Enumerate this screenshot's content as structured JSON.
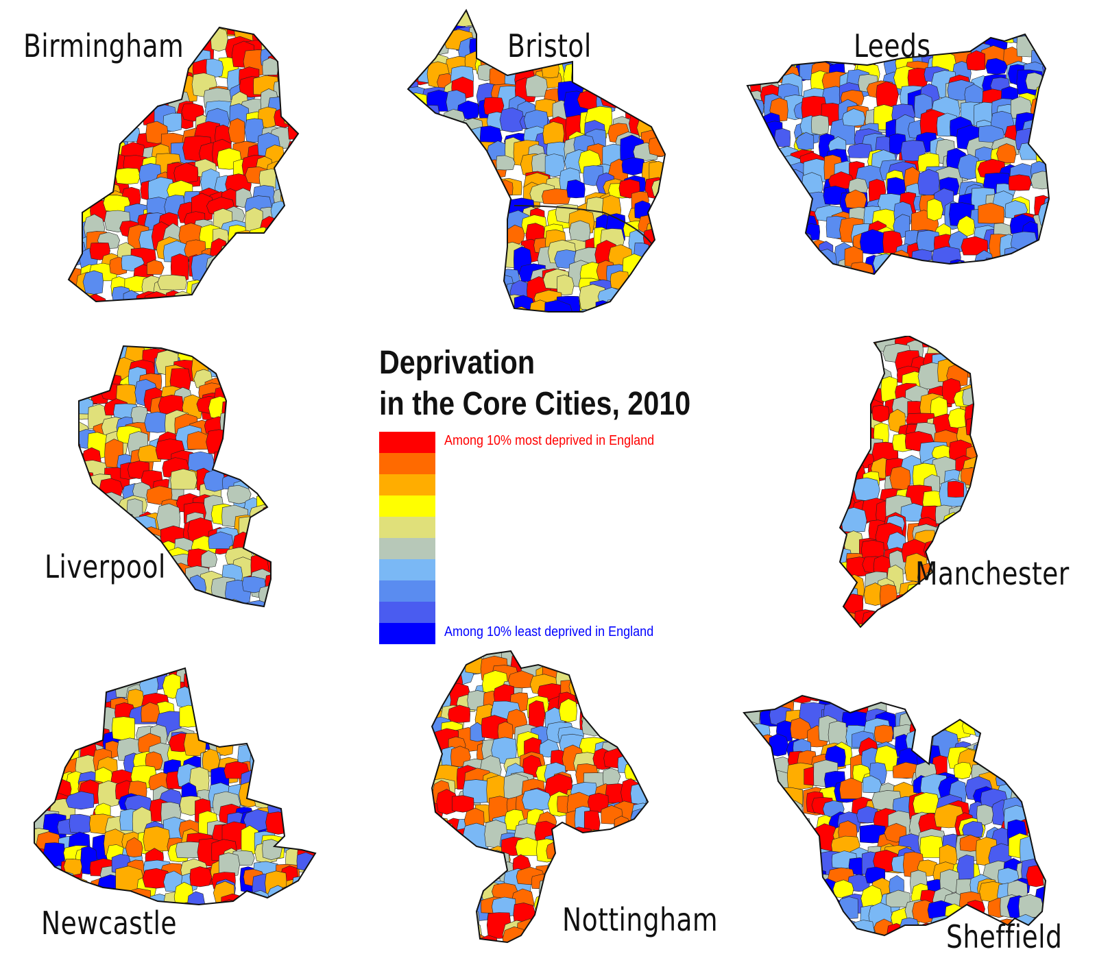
{
  "title_line1": "Deprivation",
  "title_line2": "in the Core Cities, 2010",
  "legend": {
    "top_label": "Among 10% most deprived in England",
    "bottom_label": "Among 10% least deprived in England",
    "top_label_color": "#ff0000",
    "bottom_label_color": "#0000ff",
    "colors": [
      "#ff0000",
      "#ff6a00",
      "#ffad00",
      "#ffff00",
      "#e0e07a",
      "#b7c8b8",
      "#7ab8f5",
      "#5a8cf0",
      "#4a5cf0",
      "#0000ff"
    ]
  },
  "cities": [
    {
      "name": "Birmingham",
      "icon": "birmingham-map",
      "palette": [
        0,
        0,
        0,
        1,
        2,
        3,
        4,
        5,
        6,
        7
      ]
    },
    {
      "name": "Bristol",
      "icon": "bristol-map",
      "palette": [
        0,
        1,
        2,
        3,
        4,
        5,
        6,
        7,
        8,
        9
      ]
    },
    {
      "name": "Leeds",
      "icon": "leeds-map",
      "palette": [
        0,
        1,
        3,
        5,
        6,
        6,
        7,
        7,
        8,
        9
      ]
    },
    {
      "name": "Liverpool",
      "icon": "liverpool-map",
      "palette": [
        0,
        0,
        0,
        1,
        2,
        3,
        4,
        5,
        6,
        7
      ]
    },
    {
      "name": "Manchester",
      "icon": "manchester-map",
      "palette": [
        0,
        0,
        0,
        0,
        1,
        2,
        3,
        4,
        5,
        6
      ]
    },
    {
      "name": "Newcastle",
      "icon": "newcastle-map",
      "palette": [
        0,
        0,
        1,
        2,
        3,
        4,
        5,
        6,
        8,
        9
      ]
    },
    {
      "name": "Nottingham",
      "icon": "nottingham-map",
      "palette": [
        0,
        0,
        1,
        1,
        2,
        3,
        4,
        5,
        6,
        7
      ]
    },
    {
      "name": "Sheffield",
      "icon": "sheffield-map",
      "palette": [
        0,
        1,
        2,
        3,
        5,
        5,
        6,
        7,
        8,
        9
      ]
    }
  ]
}
